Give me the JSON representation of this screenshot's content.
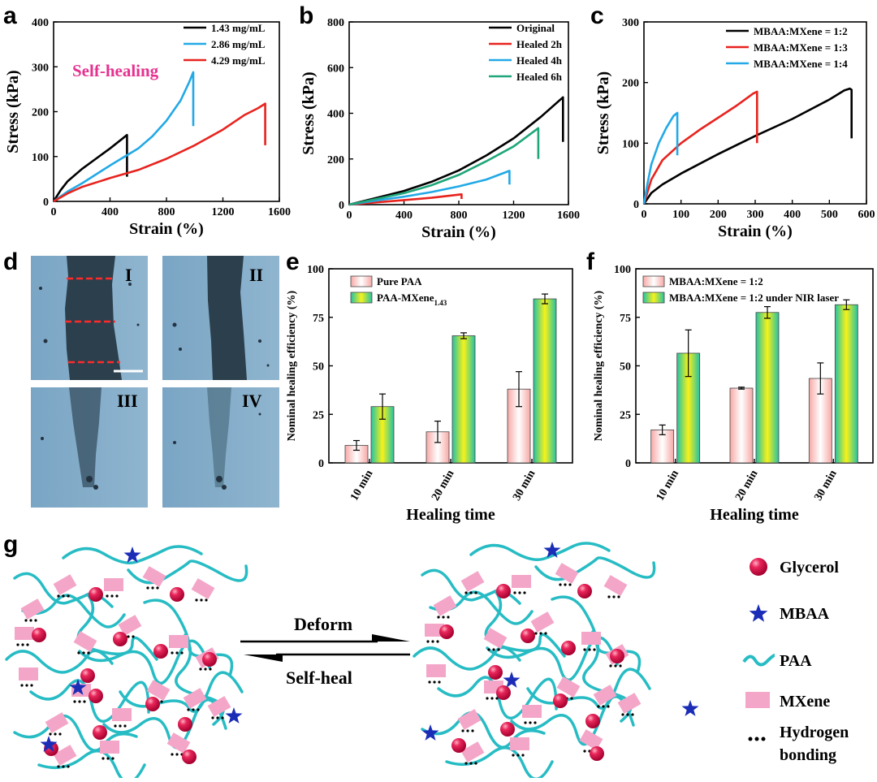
{
  "panels": {
    "a": "a",
    "b": "b",
    "c": "c",
    "d": "d",
    "e": "e",
    "f": "f",
    "g": "g"
  },
  "annotations": {
    "self_healing": "Self-healing",
    "micrograph_labels": [
      "I",
      "II",
      "III",
      "IV"
    ]
  },
  "colors": {
    "black": "#000000",
    "red": "#e8231e",
    "blue": "#22a9e6",
    "green": "#1fa67a",
    "pink_label": "#e6318f",
    "paa": "#27bcc4",
    "mxene": "#f4a6c8",
    "glycerol": "#e0174e",
    "mbaa": "#1b2db6"
  },
  "chart_data": [
    {
      "id": "a",
      "type": "line",
      "xlabel": "Strain (%)",
      "ylabel": "Stress (kPa)",
      "xlim": [
        0,
        1600
      ],
      "ylim": [
        0,
        400
      ],
      "xticks": [
        0,
        400,
        800,
        1200,
        1600
      ],
      "yticks": [
        0,
        100,
        200,
        300,
        400
      ],
      "legend": "top-right",
      "series": [
        {
          "name": "1.43 mg/mL",
          "color": "#000000",
          "x": [
            0,
            50,
            100,
            200,
            300,
            400,
            480,
            520,
            520
          ],
          "y": [
            0,
            25,
            45,
            72,
            95,
            118,
            138,
            148,
            55
          ]
        },
        {
          "name": "2.86 mg/mL",
          "color": "#22a9e6",
          "x": [
            0,
            100,
            200,
            400,
            600,
            700,
            800,
            900,
            960,
            990,
            990
          ],
          "y": [
            0,
            22,
            40,
            80,
            118,
            145,
            180,
            225,
            265,
            288,
            168
          ]
        },
        {
          "name": "4.29 mg/mL",
          "color": "#e8231e",
          "x": [
            0,
            100,
            200,
            400,
            600,
            800,
            1000,
            1200,
            1350,
            1450,
            1500,
            1500
          ],
          "y": [
            0,
            18,
            32,
            52,
            70,
            95,
            125,
            160,
            192,
            208,
            218,
            125
          ]
        }
      ]
    },
    {
      "id": "b",
      "type": "line",
      "xlabel": "Strain (%)",
      "ylabel": "Stress (kPa)",
      "xlim": [
        0,
        1600
      ],
      "ylim": [
        0,
        800
      ],
      "xticks": [
        0,
        400,
        800,
        1200,
        1600
      ],
      "yticks": [
        0,
        200,
        400,
        600,
        800
      ],
      "legend": "top-right",
      "series": [
        {
          "name": "Original",
          "color": "#000000",
          "x": [
            0,
            200,
            400,
            600,
            800,
            1000,
            1200,
            1400,
            1560,
            1560
          ],
          "y": [
            0,
            30,
            60,
            100,
            150,
            215,
            290,
            385,
            470,
            275
          ]
        },
        {
          "name": "Healed 2h",
          "color": "#e8231e",
          "x": [
            0,
            200,
            400,
            600,
            820,
            820
          ],
          "y": [
            0,
            10,
            20,
            30,
            45,
            25
          ]
        },
        {
          "name": "Healed 4h",
          "color": "#22a9e6",
          "x": [
            0,
            200,
            400,
            600,
            800,
            1000,
            1170,
            1170
          ],
          "y": [
            0,
            18,
            35,
            55,
            80,
            110,
            148,
            88
          ]
        },
        {
          "name": "Healed 6h",
          "color": "#1fa67a",
          "x": [
            0,
            200,
            400,
            600,
            800,
            1000,
            1200,
            1380,
            1380
          ],
          "y": [
            0,
            25,
            50,
            85,
            130,
            190,
            255,
            335,
            200
          ]
        }
      ]
    },
    {
      "id": "c",
      "type": "line",
      "xlabel": "Strain (%)",
      "ylabel": "Stress (kPa)",
      "xlim": [
        0,
        600
      ],
      "ylim": [
        0,
        300
      ],
      "xticks": [
        0,
        100,
        200,
        300,
        400,
        500,
        600
      ],
      "yticks": [
        0,
        100,
        200,
        300
      ],
      "legend": "top-right",
      "series": [
        {
          "name": "MBAA:MXene = 1:2",
          "color": "#000000",
          "x": [
            0,
            20,
            50,
            100,
            200,
            300,
            400,
            500,
            540,
            555,
            560,
            560
          ],
          "y": [
            0,
            18,
            32,
            50,
            82,
            112,
            140,
            172,
            187,
            190,
            188,
            108
          ]
        },
        {
          "name": "MBAA:MXene = 1:3",
          "color": "#e8231e",
          "x": [
            0,
            20,
            50,
            100,
            150,
            200,
            250,
            295,
            305,
            305
          ],
          "y": [
            0,
            40,
            72,
            100,
            122,
            142,
            162,
            182,
            185,
            100
          ]
        },
        {
          "name": "MBAA:MXene = 1:4",
          "color": "#22a9e6",
          "x": [
            0,
            10,
            20,
            40,
            60,
            80,
            90,
            90
          ],
          "y": [
            0,
            35,
            65,
            100,
            125,
            145,
            150,
            80
          ]
        }
      ]
    },
    {
      "id": "e",
      "type": "bar",
      "xlabel": "Healing time",
      "ylabel": "Nominal healing efficiency (%)",
      "ylim": [
        0,
        100
      ],
      "yticks": [
        0,
        25,
        50,
        75,
        100
      ],
      "categories": [
        "10 min",
        "20 min",
        "30 min"
      ],
      "legend": "top-left",
      "series": [
        {
          "name": "Pure PAA",
          "style": "pink",
          "values": [
            9,
            16,
            38
          ],
          "errors": [
            2.5,
            5.5,
            9
          ]
        },
        {
          "name": "PAA-MXene",
          "name_sub": "1.43",
          "style": "green",
          "values": [
            29,
            65.5,
            84.5
          ],
          "errors": [
            6.5,
            1.5,
            2.5
          ]
        }
      ]
    },
    {
      "id": "f",
      "type": "bar",
      "xlabel": "Healing time",
      "ylabel": "Nominal healing efficiency (%)",
      "ylim": [
        0,
        100
      ],
      "yticks": [
        0,
        25,
        50,
        75,
        100
      ],
      "categories": [
        "10 min",
        "20 min",
        "30 min"
      ],
      "legend": "top-left",
      "series": [
        {
          "name": "MBAA:MXene = 1:2",
          "style": "pink",
          "values": [
            17,
            38.5,
            43.5
          ],
          "errors": [
            2.5,
            0.5,
            8
          ]
        },
        {
          "name": "MBAA:MXene = 1:2 under NIR laser",
          "style": "green",
          "values": [
            56.5,
            77.5,
            81.5
          ],
          "errors": [
            12,
            3,
            2.5
          ]
        }
      ]
    }
  ],
  "schematic": {
    "arrow_top": "Deform",
    "arrow_bottom": "Self-heal",
    "legend": [
      "Glycerol",
      "MBAA",
      "PAA",
      "MXene",
      "Hydrogen",
      "bonding"
    ]
  }
}
